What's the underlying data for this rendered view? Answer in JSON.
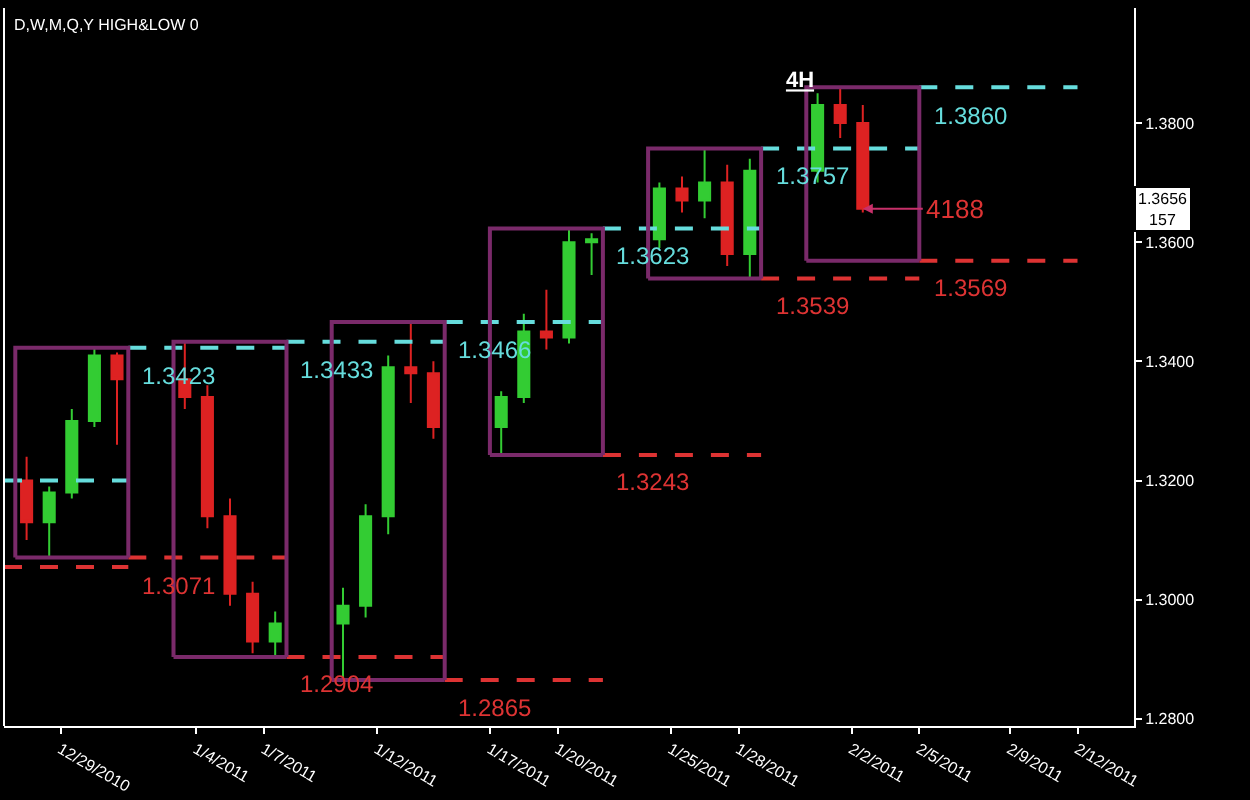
{
  "chart_data": {
    "type": "candlestick",
    "title": "4H",
    "x": [
      "2010-12-27T12:00",
      "2010-12-28T12:00",
      "2010-12-29T12:00",
      "2010-12-30T12:00",
      "2010-12-31T12:00",
      "2011-01-03T12:00",
      "2011-01-04T12:00",
      "2011-01-05T12:00",
      "2011-01-06T12:00",
      "2011-01-07T12:00",
      "2011-01-10T12:00",
      "2011-01-11T12:00",
      "2011-01-12T12:00",
      "2011-01-13T12:00",
      "2011-01-14T12:00",
      "2011-01-17T12:00",
      "2011-01-18T12:00",
      "2011-01-19T12:00",
      "2011-01-20T12:00",
      "2011-01-21T12:00",
      "2011-01-24T12:00",
      "2011-01-25T12:00",
      "2011-01-26T12:00",
      "2011-01-27T12:00",
      "2011-01-28T12:00",
      "2011-01-31T12:00",
      "2011-02-01T12:00",
      "2011-02-02T12:00"
    ],
    "ohlc": [
      [
        1.32,
        1.324,
        1.31,
        1.313
      ],
      [
        1.313,
        1.319,
        1.3071,
        1.318
      ],
      [
        1.318,
        1.332,
        1.317,
        1.33
      ],
      [
        1.33,
        1.3423,
        1.329,
        1.341
      ],
      [
        1.341,
        1.3415,
        1.326,
        1.337
      ],
      [
        1.337,
        1.3433,
        1.332,
        1.334
      ],
      [
        1.334,
        1.336,
        1.312,
        1.314
      ],
      [
        1.314,
        1.317,
        1.299,
        1.301
      ],
      [
        1.301,
        1.303,
        1.291,
        1.293
      ],
      [
        1.293,
        1.298,
        1.2904,
        1.296
      ],
      [
        1.296,
        1.302,
        1.2865,
        1.299
      ],
      [
        1.299,
        1.316,
        1.297,
        1.314
      ],
      [
        1.314,
        1.341,
        1.311,
        1.339
      ],
      [
        1.339,
        1.3466,
        1.333,
        1.338
      ],
      [
        1.338,
        1.34,
        1.327,
        1.329
      ],
      [
        1.329,
        1.335,
        1.3243,
        1.334
      ],
      [
        1.334,
        1.348,
        1.333,
        1.345
      ],
      [
        1.345,
        1.352,
        1.342,
        1.344
      ],
      [
        1.344,
        1.3623,
        1.343,
        1.36
      ],
      [
        1.36,
        1.3615,
        1.3545,
        1.3605
      ],
      [
        1.3605,
        1.37,
        1.359,
        1.369
      ],
      [
        1.369,
        1.371,
        1.365,
        1.367
      ],
      [
        1.367,
        1.3757,
        1.364,
        1.37
      ],
      [
        1.37,
        1.373,
        1.356,
        1.358
      ],
      [
        1.358,
        1.374,
        1.3539,
        1.372
      ],
      [
        1.372,
        1.385,
        1.37,
        1.383
      ],
      [
        1.383,
        1.386,
        1.3775,
        1.38
      ],
      [
        1.38,
        1.383,
        1.365,
        1.3656
      ]
    ],
    "colors": [
      "#dd2222",
      "#33cc33",
      "#33cc33",
      "#33cc33",
      "#dd2222",
      "#dd2222",
      "#dd2222",
      "#dd2222",
      "#dd2222",
      "#33cc33",
      "#33cc33",
      "#33cc33",
      "#33cc33",
      "#dd2222",
      "#dd2222",
      "#33cc33",
      "#33cc33",
      "#dd2222",
      "#33cc33",
      "#33cc33",
      "#33cc33",
      "#dd2222",
      "#33cc33",
      "#dd2222",
      "#33cc33",
      "#33cc33",
      "#dd2222",
      "#dd2222"
    ],
    "series": [
      {
        "type": "line",
        "color": "#7a2a6a",
        "x": [
          "2010-12-27",
          "2010-12-27",
          "2011-01-01",
          "2011-01-01"
        ],
        "values": [
          1.3071,
          1.3423,
          1.3423,
          1.3071
        ]
      },
      {
        "type": "line",
        "color": "#7a2a6a",
        "x": [
          "2010-12-27",
          "2011-01-01"
        ],
        "values": [
          1.3071,
          1.3071
        ]
      },
      {
        "type": "line",
        "color": "#7a2a6a",
        "x": [
          "2011-01-03",
          "2011-01-03",
          "2011-01-08",
          "2011-01-08"
        ],
        "values": [
          1.2904,
          1.3433,
          1.3433,
          1.2904
        ]
      },
      {
        "type": "line",
        "color": "#7a2a6a",
        "x": [
          "2011-01-03",
          "2011-01-08"
        ],
        "values": [
          1.2904,
          1.2904
        ]
      },
      {
        "type": "line",
        "color": "#7a2a6a",
        "x": [
          "2011-01-10",
          "2011-01-10",
          "2011-01-15",
          "2011-01-15"
        ],
        "values": [
          1.2865,
          1.3466,
          1.3466,
          1.2865
        ]
      },
      {
        "type": "line",
        "color": "#7a2a6a",
        "x": [
          "2011-01-10",
          "2011-01-15"
        ],
        "values": [
          1.2865,
          1.2865
        ]
      },
      {
        "type": "line",
        "color": "#7a2a6a",
        "x": [
          "2011-01-17",
          "2011-01-17",
          "2011-01-22",
          "2011-01-22"
        ],
        "values": [
          1.3243,
          1.3623,
          1.3623,
          1.3243
        ]
      },
      {
        "type": "line",
        "color": "#7a2a6a",
        "x": [
          "2011-01-17",
          "2011-01-22"
        ],
        "values": [
          1.3243,
          1.3243
        ]
      },
      {
        "type": "line",
        "color": "#7a2a6a",
        "x": [
          "2011-01-24",
          "2011-01-24",
          "2011-01-29",
          "2011-01-29"
        ],
        "values": [
          1.3539,
          1.3757,
          1.3757,
          1.3539
        ]
      },
      {
        "type": "line",
        "color": "#7a2a6a",
        "x": [
          "2011-01-24",
          "2011-01-29"
        ],
        "values": [
          1.3539,
          1.3539
        ]
      },
      {
        "type": "line",
        "color": "#7a2a6a",
        "x": [
          "2011-01-31",
          "2011-01-31",
          "2011-02-05",
          "2011-02-05"
        ],
        "values": [
          1.3569,
          1.386,
          1.386,
          1.3569
        ]
      },
      {
        "type": "line",
        "color": "#7a2a6a",
        "x": [
          "2011-01-31",
          "2011-02-05"
        ],
        "values": [
          1.3569,
          1.3569
        ]
      },
      {
        "type": "line",
        "color": "#66dddd",
        "line_style": "dashed",
        "x": [
          "2010-12-26T12:00",
          "2011-01-01"
        ],
        "values": [
          1.32,
          1.32
        ]
      },
      {
        "type": "line",
        "color": "#dd3333",
        "line_style": "dashed",
        "x": [
          "2010-12-26T12:00",
          "2011-01-01"
        ],
        "values": [
          1.3055,
          1.3055
        ]
      },
      {
        "type": "line",
        "name": "1.3423",
        "color": "#66dddd",
        "line_style": "dashed",
        "x": [
          "2011-01-01",
          "2011-01-08"
        ],
        "values": [
          1.3423,
          1.3423
        ]
      },
      {
        "type": "line",
        "name": "1.3071",
        "color": "#dd3333",
        "line_style": "dashed",
        "x": [
          "2011-01-01",
          "2011-01-08"
        ],
        "values": [
          1.3071,
          1.3071
        ]
      },
      {
        "type": "line",
        "name": "1.3433",
        "color": "#66dddd",
        "line_style": "dashed",
        "x": [
          "2011-01-08",
          "2011-01-15"
        ],
        "values": [
          1.3433,
          1.3433
        ]
      },
      {
        "type": "line",
        "name": "1.2904",
        "color": "#dd3333",
        "line_style": "dashed",
        "x": [
          "2011-01-08",
          "2011-01-15"
        ],
        "values": [
          1.2904,
          1.2904
        ]
      },
      {
        "type": "line",
        "name": "1.3466",
        "color": "#66dddd",
        "line_style": "dashed",
        "x": [
          "2011-01-15",
          "2011-01-22"
        ],
        "values": [
          1.3466,
          1.3466
        ]
      },
      {
        "type": "line",
        "name": "1.2865",
        "color": "#dd3333",
        "line_style": "dashed",
        "x": [
          "2011-01-15",
          "2011-01-22"
        ],
        "values": [
          1.2865,
          1.2865
        ]
      },
      {
        "type": "line",
        "name": "1.3623",
        "color": "#66dddd",
        "line_style": "dashed",
        "x": [
          "2011-01-22",
          "2011-01-29"
        ],
        "values": [
          1.3623,
          1.3623
        ]
      },
      {
        "type": "line",
        "name": "1.3243",
        "color": "#dd3333",
        "line_style": "dashed",
        "x": [
          "2011-01-22",
          "2011-01-29"
        ],
        "values": [
          1.3243,
          1.3243
        ]
      },
      {
        "type": "line",
        "name": "1.3757",
        "color": "#66dddd",
        "line_style": "dashed",
        "x": [
          "2011-01-29",
          "2011-02-05"
        ],
        "values": [
          1.3757,
          1.3757
        ]
      },
      {
        "type": "line",
        "name": "1.3539",
        "color": "#dd3333",
        "line_style": "dashed",
        "x": [
          "2011-01-29",
          "2011-02-05"
        ],
        "values": [
          1.3539,
          1.3539
        ]
      },
      {
        "type": "line",
        "name": "1.3860",
        "color": "#66dddd",
        "line_style": "dashed",
        "x": [
          "2011-02-05",
          "2011-02-12"
        ],
        "values": [
          1.386,
          1.386
        ]
      },
      {
        "type": "line",
        "name": "1.3569",
        "color": "#dd3333",
        "line_style": "dashed",
        "x": [
          "2011-02-05",
          "2011-02-12"
        ],
        "values": [
          1.3569,
          1.3569
        ]
      }
    ],
    "annotations": [
      "D,W,M,Q,Y HIGH&LOW 0",
      {
        "text": "4188",
        "x": "2011-02-02T12:00",
        "y": 1.3656
      },
      {
        "text": "1.3656\n157",
        "y": 1.3656
      }
    ],
    "xlim": [
      "2010-12-26T12:00",
      "2011-02-14T12:00"
    ],
    "xticks": [
      {
        "value": "2010-12-29",
        "label": "12/29/2010"
      },
      {
        "value": "2011-01-04",
        "label": "1/4/2011"
      },
      {
        "value": "2011-01-07",
        "label": "1/7/2011"
      },
      {
        "value": "2011-01-12",
        "label": "1/12/2011"
      },
      {
        "value": "2011-01-17",
        "label": "1/17/2011"
      },
      {
        "value": "2011-01-20",
        "label": "1/20/2011"
      },
      {
        "value": "2011-01-25",
        "label": "1/25/2011"
      },
      {
        "value": "2011-01-28",
        "label": "1/28/2011"
      },
      {
        "value": "2011-02-02",
        "label": "2/2/2011"
      },
      {
        "value": "2011-02-05",
        "label": "2/5/2011"
      },
      {
        "value": "2011-02-09",
        "label": "2/9/2011"
      },
      {
        "value": "2011-02-12",
        "label": "2/12/2011"
      }
    ],
    "ylim": [
      1.2788,
      1.3993
    ],
    "yticks": [
      {
        "value": 1.28,
        "label": "1.2800"
      },
      {
        "value": 1.3,
        "label": "1.3000"
      },
      {
        "value": 1.32,
        "label": "1.3200"
      },
      {
        "value": 1.34,
        "label": "1.3400"
      },
      {
        "value": 1.36,
        "label": "1.3600"
      },
      {
        "value": 1.38,
        "label": "1.3800"
      }
    ],
    "grid": false,
    "legend": false
  }
}
